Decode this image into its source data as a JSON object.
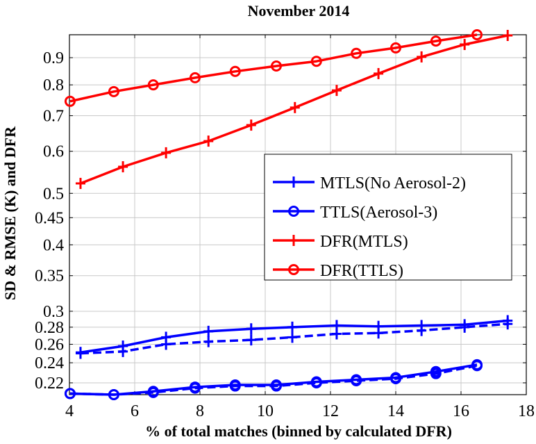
{
  "chart_data": {
    "type": "line",
    "title": "November 2014",
    "xlabel": "% of total matches (binned by calculated DFR)",
    "ylabel": "SD & RMSE (K) and DFR",
    "xlim": [
      4,
      18
    ],
    "ylim": [
      0.209,
      0.994
    ],
    "yscale": "log",
    "grid": true,
    "x_ticks": [
      4,
      6,
      8,
      10,
      12,
      14,
      16,
      18
    ],
    "x_tick_labels": [
      "4",
      "6",
      "8",
      "10",
      "12",
      "14",
      "16",
      "18"
    ],
    "y_ticks": [
      0.22,
      0.24,
      0.26,
      0.28,
      0.3,
      0.35,
      0.4,
      0.45,
      0.5,
      0.6,
      0.7,
      0.8,
      0.9
    ],
    "y_tick_labels": [
      "0.22",
      "0.24",
      "0.26",
      "0.28",
      "0.3",
      "0.35",
      "0.4",
      "0.45",
      "0.5",
      "0.6",
      "0.7",
      "0.8",
      "0.9"
    ],
    "legend_position": "center-right",
    "legend": [
      {
        "label": "MTLS(No Aerosol-2)",
        "color": "#0000ff",
        "marker": "+"
      },
      {
        "label": "TTLS(Aerosol-3)",
        "color": "#0000ff",
        "marker": "o"
      },
      {
        "label": "DFR(MTLS)",
        "color": "#ff0000",
        "marker": "+"
      },
      {
        "label": "DFR(TTLS)",
        "color": "#ff0000",
        "marker": "o"
      }
    ],
    "series": [
      {
        "name": "MTLS(No Aerosol-2)",
        "color": "#0000ff",
        "marker": "+",
        "style": "solid",
        "x": [
          4.34,
          5.64,
          6.96,
          8.26,
          9.57,
          10.83,
          12.19,
          13.47,
          14.79,
          16.11,
          17.43
        ],
        "y": [
          0.251,
          0.258,
          0.268,
          0.275,
          0.278,
          0.28,
          0.282,
          0.281,
          0.282,
          0.283,
          0.288
        ]
      },
      {
        "name": "MTLS(No Aerosol-2) dashed",
        "color": "#0000ff",
        "marker": "+",
        "style": "dashed",
        "x": [
          4.34,
          5.64,
          6.96,
          8.26,
          9.57,
          10.83,
          12.19,
          13.47,
          14.79,
          16.11,
          17.43
        ],
        "y": [
          0.25,
          0.252,
          0.26,
          0.263,
          0.265,
          0.268,
          0.272,
          0.273,
          0.276,
          0.28,
          0.284
        ]
      },
      {
        "name": "TTLS(Aerosol-3)",
        "color": "#0000ff",
        "marker": "o",
        "style": "solid",
        "x": [
          4.02,
          5.36,
          6.57,
          7.85,
          9.08,
          10.34,
          11.57,
          12.79,
          14.0,
          15.23,
          16.49
        ],
        "y": [
          0.21,
          0.209,
          0.212,
          0.216,
          0.218,
          0.218,
          0.221,
          0.223,
          0.225,
          0.231,
          0.238
        ]
      },
      {
        "name": "TTLS(Aerosol-3) dashed",
        "color": "#0000ff",
        "marker": "o",
        "style": "dashed",
        "x": [
          4.02,
          5.36,
          6.57,
          7.85,
          9.08,
          10.34,
          11.57,
          12.79,
          14.0,
          15.23,
          16.49
        ],
        "y": [
          0.21,
          0.209,
          0.211,
          0.215,
          0.217,
          0.217,
          0.22,
          0.222,
          0.224,
          0.229,
          0.237
        ]
      },
      {
        "name": "DFR(MTLS)",
        "color": "#ff0000",
        "marker": "+",
        "style": "solid",
        "x": [
          4.34,
          5.64,
          6.96,
          8.26,
          9.57,
          10.91,
          12.19,
          13.47,
          14.79,
          16.11,
          17.43
        ],
        "y": [
          0.522,
          0.561,
          0.596,
          0.627,
          0.672,
          0.725,
          0.781,
          0.84,
          0.903,
          0.953,
          0.991
        ]
      },
      {
        "name": "DFR(TTLS)",
        "color": "#ff0000",
        "marker": "o",
        "style": "solid",
        "x": [
          4.02,
          5.36,
          6.57,
          7.85,
          9.08,
          10.34,
          11.57,
          12.79,
          14.0,
          15.23,
          16.49
        ],
        "y": [
          0.745,
          0.777,
          0.8,
          0.825,
          0.848,
          0.868,
          0.886,
          0.917,
          0.939,
          0.967,
          0.994
        ]
      }
    ]
  }
}
